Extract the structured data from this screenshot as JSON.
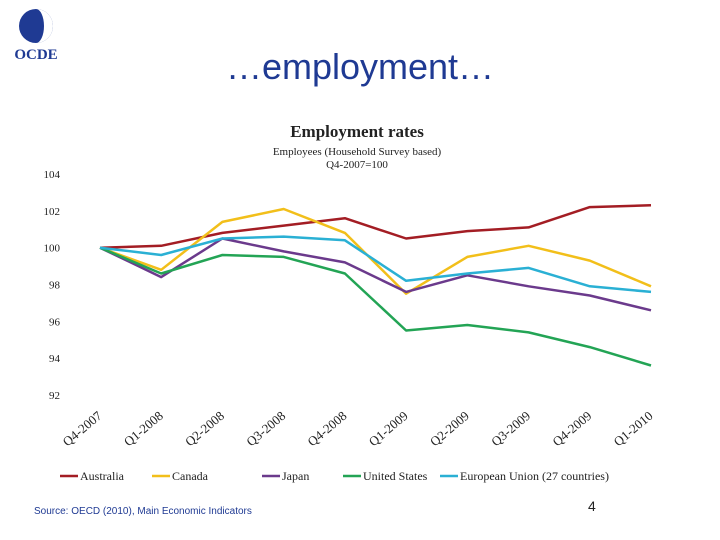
{
  "slide": {
    "title": "…employment…",
    "source": "Source: OECD (2010), Main Economic Indicators",
    "page_number": "4",
    "logo_text": "OCDE"
  },
  "colors": {
    "Australia": "#a31d24",
    "Canada": "#f2bf1a",
    "Japan": "#6b3a8c",
    "United States": "#23a455",
    "European Union (27 countries)": "#2ab0d4",
    "title": "#1f3a93"
  },
  "chart_data": {
    "type": "line",
    "title": "Employment rates",
    "subtitle": "Employees (Household Survey based)",
    "subtitle2": "Q4-2007=100",
    "categories": [
      "Q4-2007",
      "Q1-2008",
      "Q2-2008",
      "Q3-2008",
      "Q4-2008",
      "Q1-2009",
      "Q2-2009",
      "Q3-2009",
      "Q4-2009",
      "Q1-2010"
    ],
    "ylim": [
      92,
      104
    ],
    "yticks": [
      92,
      94,
      96,
      98,
      100,
      102,
      104
    ],
    "legend_position": "bottom",
    "series": [
      {
        "name": "Australia",
        "values": [
          100,
          100.1,
          100.8,
          101.2,
          101.6,
          100.5,
          100.9,
          101.1,
          102.2,
          102.3
        ]
      },
      {
        "name": "Canada",
        "values": [
          100,
          98.8,
          101.4,
          102.1,
          100.8,
          97.5,
          99.5,
          100.1,
          99.3,
          97.9
        ]
      },
      {
        "name": "Japan",
        "values": [
          100,
          98.4,
          100.5,
          99.8,
          99.2,
          97.6,
          98.5,
          97.9,
          97.4,
          96.6
        ]
      },
      {
        "name": "United States",
        "values": [
          100,
          98.6,
          99.6,
          99.5,
          98.6,
          95.5,
          95.8,
          95.4,
          94.6,
          93.6
        ]
      },
      {
        "name": "European Union (27 countries)",
        "values": [
          100,
          99.6,
          100.5,
          100.6,
          100.4,
          98.2,
          98.6,
          98.9,
          97.9,
          97.6
        ]
      }
    ]
  }
}
